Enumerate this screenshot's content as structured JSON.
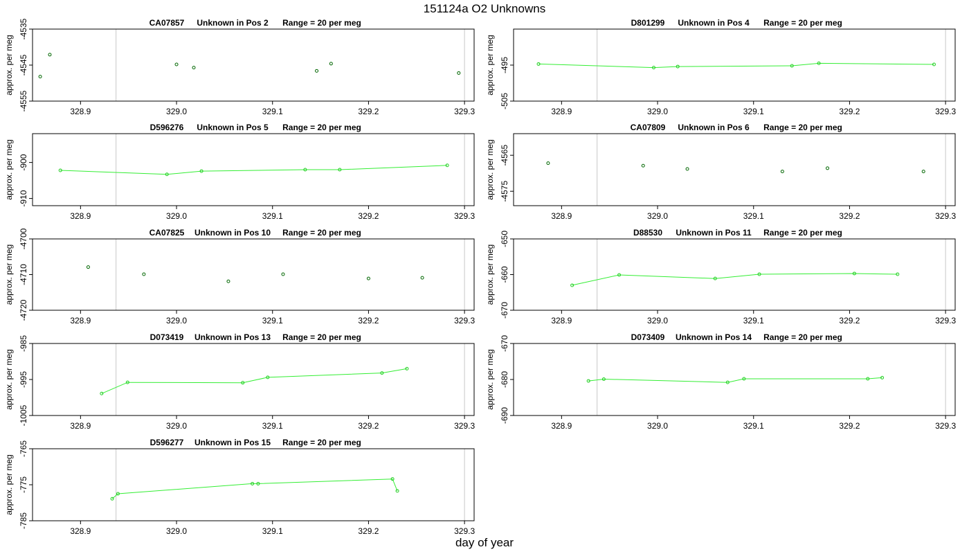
{
  "page": {
    "title": "151124a  O2 Unknowns",
    "xlabel": "day of year"
  },
  "chart_data": [
    {
      "type": "scatter",
      "id": "CA07857",
      "label": "Unknown in Pos 2",
      "range_text": "Range = 20 per meg",
      "ylabel": "approx. per meg",
      "xlim": [
        328.85,
        329.31
      ],
      "ylim": [
        -4555,
        -4535
      ],
      "xticks": [
        "328.9",
        "329.0",
        "329.1",
        "329.2",
        "329.3"
      ],
      "yticks": [
        -4535,
        -4545,
        -4555
      ],
      "vlines": [
        328.937,
        329.3
      ],
      "connect": false,
      "x": [
        328.858,
        328.868,
        329.0,
        329.018,
        329.146,
        329.161,
        329.294
      ],
      "y": [
        -4548.2,
        -4542.1,
        -4544.8,
        -4545.7,
        -4546.6,
        -4544.6,
        -4547.2
      ]
    },
    {
      "type": "line",
      "id": "D801299",
      "label": "Unknown in Pos 4",
      "range_text": "Range = 20 per meg",
      "ylabel": "approx. per meg",
      "xlim": [
        328.85,
        329.31
      ],
      "ylim": [
        -505,
        -485
      ],
      "xticks": [
        "328.9",
        "329.0",
        "329.1",
        "329.2",
        "329.3"
      ],
      "yticks": [
        -495,
        -505
      ],
      "vlines": [
        328.937,
        329.3
      ],
      "connect": true,
      "x": [
        328.876,
        328.996,
        329.021,
        329.14,
        329.168,
        329.288
      ],
      "y": [
        -494.7,
        -495.7,
        -495.4,
        -495.2,
        -494.5,
        -494.8
      ]
    },
    {
      "type": "line",
      "id": "D596276",
      "label": "Unknown in Pos 5",
      "range_text": "Range = 20 per meg",
      "ylabel": "approx. per meg",
      "xlim": [
        328.85,
        329.31
      ],
      "ylim": [
        -912,
        -892
      ],
      "xticks": [
        "328.9",
        "329.0",
        "329.1",
        "329.2",
        "329.3"
      ],
      "yticks": [
        -900,
        -910
      ],
      "vlines": [
        328.937,
        329.3
      ],
      "connect": true,
      "x": [
        328.879,
        328.99,
        329.026,
        329.134,
        329.17,
        329.282
      ],
      "y": [
        -902.2,
        -903.3,
        -902.4,
        -902.0,
        -902.0,
        -900.8
      ]
    },
    {
      "type": "scatter",
      "id": "CA07809",
      "label": "Unknown in Pos 6",
      "range_text": "Range = 20 per meg",
      "ylabel": "approx. per meg",
      "xlim": [
        328.85,
        329.31
      ],
      "ylim": [
        -4579,
        -4559
      ],
      "xticks": [
        "328.9",
        "329.0",
        "329.1",
        "329.2",
        "329.3"
      ],
      "yticks": [
        -4565,
        -4575
      ],
      "vlines": [
        328.937,
        329.3
      ],
      "connect": false,
      "x": [
        328.886,
        328.985,
        329.031,
        329.13,
        329.177,
        329.277
      ],
      "y": [
        -4567.2,
        -4567.9,
        -4568.8,
        -4569.5,
        -4568.6,
        -4569.5
      ]
    },
    {
      "type": "scatter",
      "id": "CA07825",
      "label": "Unknown in Pos 10",
      "range_text": "Range = 20 per meg",
      "ylabel": "approx. per meg",
      "xlim": [
        328.85,
        329.31
      ],
      "ylim": [
        -4720,
        -4700
      ],
      "xticks": [
        "328.9",
        "329.0",
        "329.1",
        "329.2",
        "329.3"
      ],
      "yticks": [
        -4700,
        -4710,
        -4720
      ],
      "vlines": [
        328.937,
        329.3
      ],
      "connect": false,
      "x": [
        328.908,
        328.966,
        329.054,
        329.111,
        329.2,
        329.256
      ],
      "y": [
        -4707.9,
        -4709.9,
        -4711.9,
        -4709.9,
        -4711.1,
        -4710.9
      ]
    },
    {
      "type": "line",
      "id": "D88530",
      "label": "Unknown in Pos 11",
      "range_text": "Range = 20 per meg",
      "ylabel": "approx. per meg",
      "xlim": [
        328.85,
        329.31
      ],
      "ylim": [
        -670,
        -650
      ],
      "xticks": [
        "328.9",
        "329.0",
        "329.1",
        "329.2",
        "329.3"
      ],
      "yticks": [
        -650,
        -660,
        -670
      ],
      "vlines": [
        328.937,
        329.3
      ],
      "connect": true,
      "x": [
        328.911,
        328.96,
        329.06,
        329.106,
        329.205,
        329.25
      ],
      "y": [
        -663.0,
        -660.1,
        -661.1,
        -659.9,
        -659.7,
        -659.9
      ]
    },
    {
      "type": "line",
      "id": "D073419",
      "label": "Unknown in Pos 13",
      "range_text": "Range = 20 per meg",
      "ylabel": "approx. per meg",
      "xlim": [
        328.85,
        329.31
      ],
      "ylim": [
        -1005,
        -985
      ],
      "xticks": [
        "328.9",
        "329.0",
        "329.1",
        "329.2",
        "329.3"
      ],
      "yticks": [
        -985,
        -995,
        -1005
      ],
      "vlines": [
        328.937,
        329.3
      ],
      "connect": true,
      "x": [
        328.922,
        328.949,
        329.069,
        329.095,
        329.214,
        329.24
      ],
      "y": [
        -998.9,
        -995.8,
        -995.9,
        -994.4,
        -993.2,
        -992.0
      ]
    },
    {
      "type": "line",
      "id": "D073409",
      "label": "Unknown in Pos 14",
      "range_text": "Range = 20 per meg",
      "ylabel": "approx. per meg",
      "xlim": [
        328.85,
        329.31
      ],
      "ylim": [
        -690,
        -670
      ],
      "xticks": [
        "328.9",
        "329.0",
        "329.1",
        "329.2",
        "329.3"
      ],
      "yticks": [
        -670,
        -680,
        -690
      ],
      "vlines": [
        328.937,
        329.3
      ],
      "connect": true,
      "x": [
        328.928,
        328.944,
        329.073,
        329.09,
        329.219,
        329.234
      ],
      "y": [
        -680.4,
        -679.9,
        -680.8,
        -679.8,
        -679.8,
        -679.5
      ]
    },
    {
      "type": "line",
      "id": "D596277",
      "label": "Unknown in Pos 15",
      "range_text": "Range = 20 per meg",
      "ylabel": "approx. per meg",
      "xlim": [
        328.85,
        329.31
      ],
      "ylim": [
        -785,
        -765
      ],
      "xticks": [
        "328.9",
        "329.0",
        "329.1",
        "329.2",
        "329.3"
      ],
      "yticks": [
        -765,
        -775,
        -785
      ],
      "vlines": [
        328.937,
        329.3
      ],
      "connect": true,
      "x": [
        328.933,
        328.939,
        329.079,
        329.085,
        329.225,
        329.23
      ],
      "y": [
        -778.9,
        -777.5,
        -774.7,
        -774.7,
        -773.4,
        -776.7
      ]
    }
  ]
}
